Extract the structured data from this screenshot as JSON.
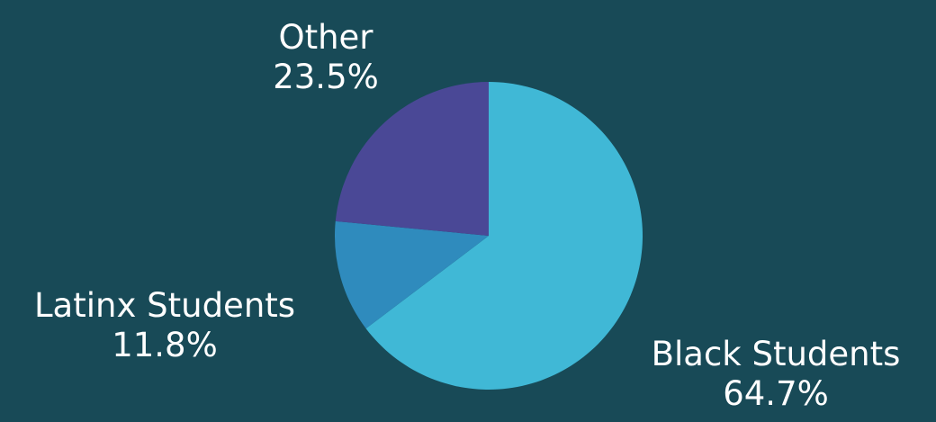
{
  "background": "#184a57",
  "chart_data": {
    "type": "pie",
    "title": "",
    "slices": [
      {
        "name": "Black Students",
        "value": 64.7,
        "label": "64.7%",
        "color": "#40b8d6"
      },
      {
        "name": "Latinx Students",
        "value": 11.8,
        "label": "11.8%",
        "color": "#2f8bbd"
      },
      {
        "name": "Other",
        "value": 23.5,
        "label": "23.5%",
        "color": "#4a4896"
      }
    ],
    "start_angle_deg": 0,
    "direction": "clockwise"
  }
}
